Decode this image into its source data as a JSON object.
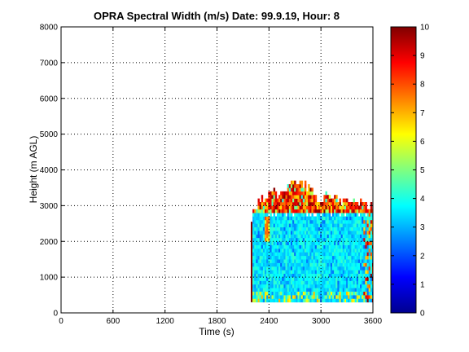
{
  "chart_data": {
    "type": "heatmap",
    "title": "OPRA Spectral Width (m/s)  Date: 99.9.19, Hour: 8",
    "xlabel": "Time (s)",
    "ylabel": "Height (m AGL)",
    "xlim": [
      0,
      3600
    ],
    "ylim": [
      0,
      8000
    ],
    "x_ticks": [
      "0",
      "600",
      "1200",
      "1800",
      "2400",
      "3000",
      "3600"
    ],
    "y_ticks": [
      "0",
      "1000",
      "2000",
      "3000",
      "4000",
      "5000",
      "6000",
      "7000",
      "8000"
    ],
    "grid": true,
    "colormap": "jet",
    "colorbar": {
      "range": [
        0,
        10
      ],
      "ticks": [
        "0",
        "1",
        "2",
        "3",
        "4",
        "5",
        "6",
        "7",
        "8",
        "9",
        "10"
      ]
    },
    "data_extent": {
      "time_start": 2190,
      "time_end": 3600,
      "height_min": 300,
      "height_max": 3750
    },
    "typical_values": {
      "lower_layer": "3–4 m/s",
      "cloud_top": "8–10 m/s"
    }
  }
}
